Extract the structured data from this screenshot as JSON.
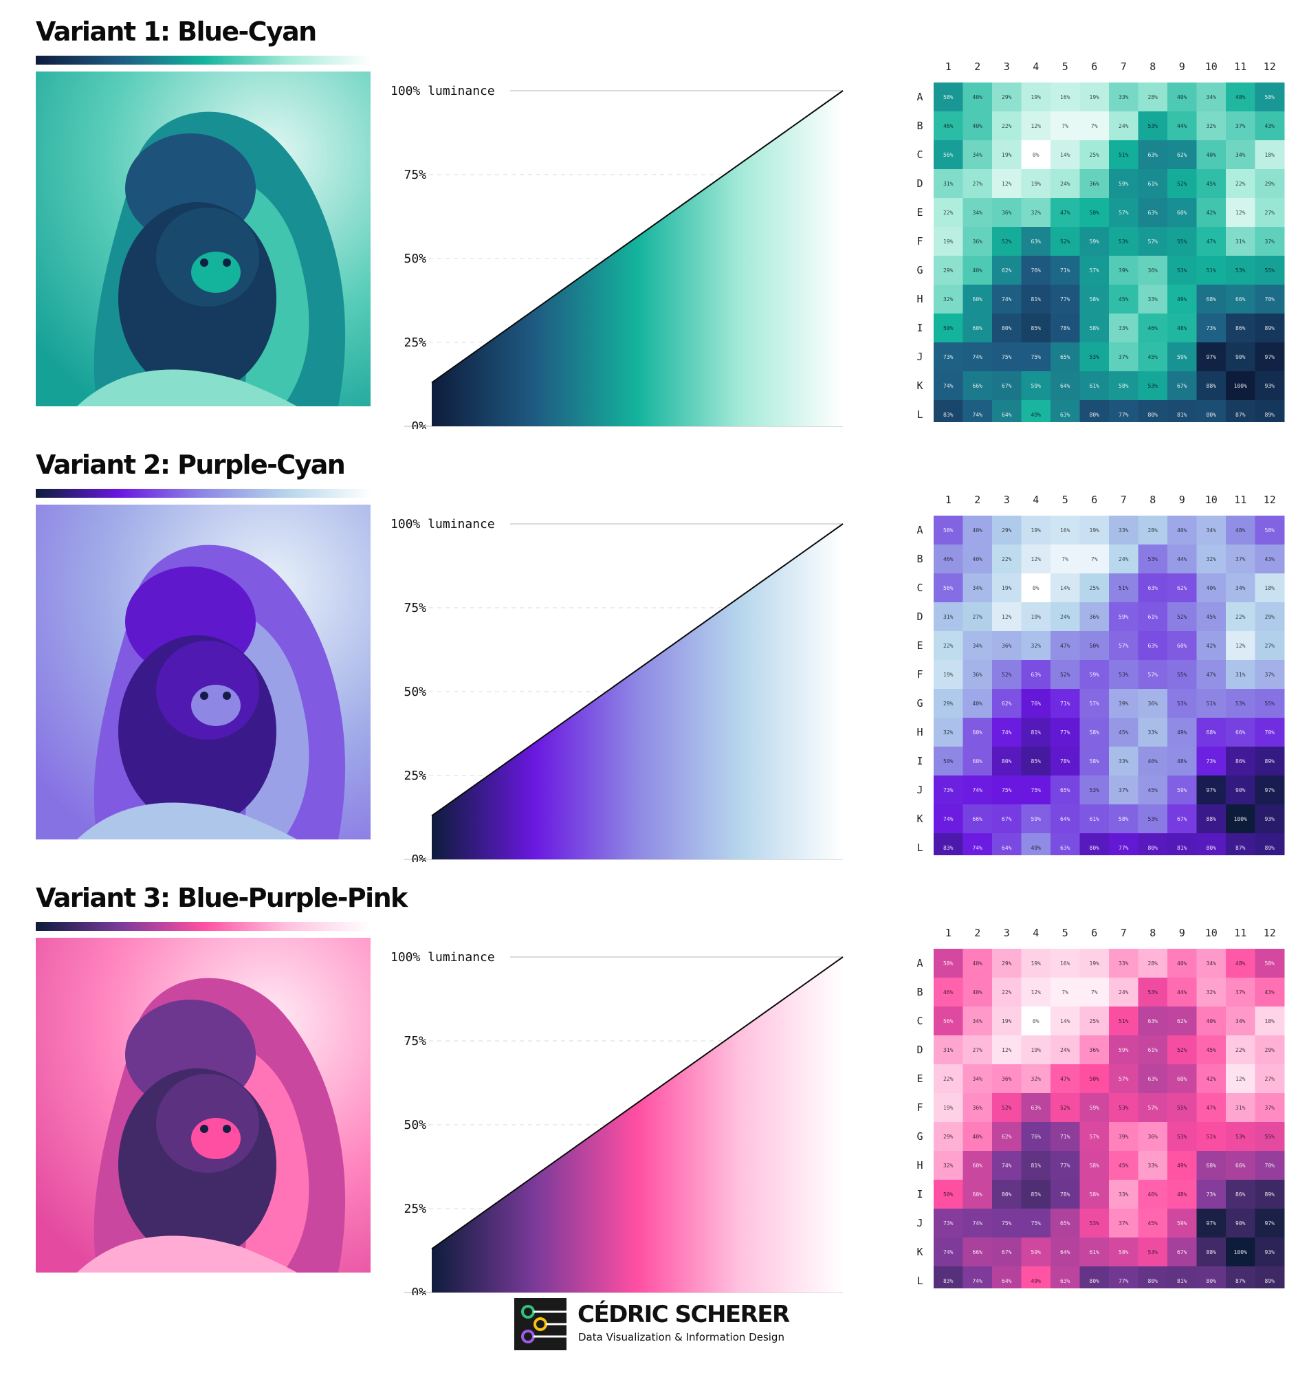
{
  "variants": [
    {
      "title": "Variant 1: Blue-Cyan",
      "palette": [
        "#0e1c3c",
        "#1f5a82",
        "#14b39c",
        "#a4ead8",
        "#ffffff"
      ],
      "palette_name": "blue-cyan"
    },
    {
      "title": "Variant 2: Purple-Cyan",
      "palette": [
        "#0e1c3c",
        "#6a18e0",
        "#8e88e4",
        "#b6d6ec",
        "#ffffff"
      ],
      "palette_name": "purple-cyan"
    },
    {
      "title": "Variant 3: Blue-Purple-Pink",
      "palette": [
        "#0e1c3c",
        "#7a3a9a",
        "#ff4fa2",
        "#ffc2df",
        "#ffffff"
      ],
      "palette_name": "blue-purple-pink"
    }
  ],
  "photo_subject": "monkey-mother-and-baby-icon",
  "chart_data": [
    {
      "type": "area",
      "ylabel": "luminance",
      "x": [
        0,
        1
      ],
      "y": [
        13,
        100
      ],
      "ylim": [
        0,
        100
      ],
      "yticks": [
        0,
        25,
        50,
        75,
        100
      ],
      "ytick_labels": [
        "0%",
        "25%",
        "50%",
        "75%",
        "100% luminance"
      ],
      "grid": true
    },
    {
      "type": "heatmap",
      "columns": [
        "1",
        "2",
        "3",
        "4",
        "5",
        "6",
        "7",
        "8",
        "9",
        "10",
        "11",
        "12"
      ],
      "rows": [
        "A",
        "B",
        "C",
        "D",
        "E",
        "F",
        "G",
        "H",
        "I",
        "J",
        "K",
        "L"
      ],
      "unit": "%",
      "values": [
        [
          58,
          40,
          29,
          19,
          16,
          19,
          33,
          28,
          40,
          34,
          48,
          58
        ],
        [
          46,
          40,
          22,
          12,
          7,
          7,
          24,
          53,
          44,
          32,
          37,
          43
        ],
        [
          56,
          34,
          19,
          0,
          14,
          25,
          51,
          63,
          62,
          40,
          34,
          18
        ],
        [
          31,
          27,
          12,
          19,
          24,
          36,
          59,
          61,
          52,
          45,
          22,
          29
        ],
        [
          22,
          34,
          36,
          32,
          47,
          50,
          57,
          63,
          60,
          42,
          12,
          27
        ],
        [
          19,
          36,
          52,
          63,
          52,
          59,
          53,
          57,
          55,
          47,
          31,
          37
        ],
        [
          29,
          40,
          62,
          76,
          71,
          57,
          39,
          36,
          53,
          51,
          53,
          55
        ],
        [
          32,
          60,
          74,
          81,
          77,
          58,
          45,
          33,
          49,
          68,
          66,
          70
        ],
        [
          50,
          60,
          80,
          85,
          78,
          58,
          33,
          46,
          48,
          73,
          86,
          89
        ],
        [
          73,
          74,
          75,
          75,
          65,
          53,
          37,
          45,
          59,
          97,
          90,
          97
        ],
        [
          74,
          66,
          67,
          59,
          64,
          61,
          58,
          53,
          67,
          88,
          100,
          93
        ],
        [
          83,
          74,
          64,
          49,
          63,
          80,
          77,
          80,
          81,
          80,
          87,
          89
        ]
      ]
    }
  ],
  "footer": {
    "name": "CÉDRIC SCHERER",
    "tagline": "Data Visualization & Information Design",
    "logo": "circuit-logo-icon"
  }
}
